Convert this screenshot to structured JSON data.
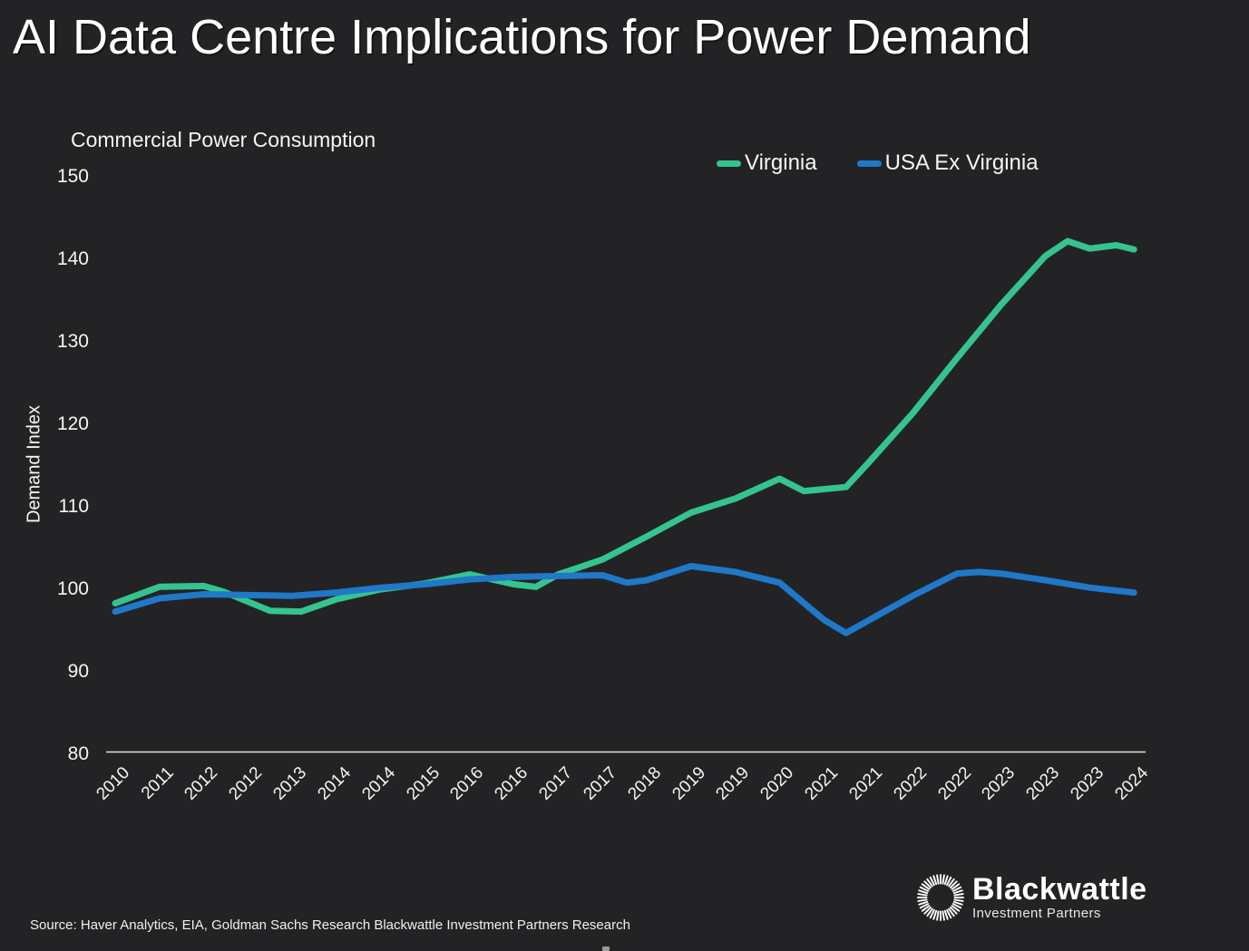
{
  "header": {
    "title": "AI Data Centre Implications for Power Demand"
  },
  "chart": {
    "subtitle": "Commercial Power Consumption",
    "y_axis_title": "Demand Index",
    "legend": [
      {
        "label": "Virginia",
        "color": "#35c48e"
      },
      {
        "label": "USA Ex Virginia",
        "color": "#1f78c8"
      }
    ]
  },
  "chart_data": {
    "type": "line",
    "title": "Commercial Power Consumption",
    "xlabel": "",
    "ylabel": "Demand Index",
    "ylim": [
      80,
      150
    ],
    "y_ticks": [
      150,
      140,
      130,
      120,
      110,
      100,
      90,
      80
    ],
    "x_tick_labels": [
      "2010",
      "2011",
      "2012",
      "2012",
      "2013",
      "2014",
      "2014",
      "2015",
      "2016",
      "2016",
      "2017",
      "2017",
      "2018",
      "2019",
      "2019",
      "2020",
      "2021",
      "2021",
      "2022",
      "2022",
      "2023",
      "2023",
      "2023",
      "2024"
    ],
    "grid": false,
    "legend_position": "top-right",
    "series": [
      {
        "name": "Virginia",
        "color": "#35c48e",
        "points": [
          [
            0,
            98.3
          ],
          [
            1,
            100.3
          ],
          [
            2,
            100.4
          ],
          [
            2.45,
            99.7
          ],
          [
            3.5,
            97.4
          ],
          [
            4.2,
            97.3
          ],
          [
            5,
            98.8
          ],
          [
            6,
            100.0
          ],
          [
            7,
            100.7
          ],
          [
            8,
            101.8
          ],
          [
            9,
            100.6
          ],
          [
            9.5,
            100.3
          ],
          [
            10,
            101.8
          ],
          [
            11,
            103.6
          ],
          [
            12,
            106.4
          ],
          [
            13,
            109.3
          ],
          [
            14,
            111.0
          ],
          [
            15,
            113.4
          ],
          [
            15.55,
            111.9
          ],
          [
            16.5,
            112.4
          ],
          [
            17,
            115.3
          ],
          [
            18,
            121.3
          ],
          [
            19,
            128.0
          ],
          [
            20,
            134.5
          ],
          [
            21,
            140.4
          ],
          [
            21.5,
            142.2
          ],
          [
            22,
            141.3
          ],
          [
            22.6,
            141.7
          ],
          [
            23,
            141.2
          ]
        ]
      },
      {
        "name": "USA Ex Virginia",
        "color": "#1f78c8",
        "points": [
          [
            0,
            97.3
          ],
          [
            1,
            98.9
          ],
          [
            2,
            99.4
          ],
          [
            3,
            99.3
          ],
          [
            4,
            99.2
          ],
          [
            5,
            99.6
          ],
          [
            6,
            100.2
          ],
          [
            7,
            100.6
          ],
          [
            8,
            101.2
          ],
          [
            9,
            101.5
          ],
          [
            10,
            101.6
          ],
          [
            11,
            101.7
          ],
          [
            11.55,
            100.8
          ],
          [
            12,
            101.1
          ],
          [
            13,
            102.8
          ],
          [
            14,
            102.1
          ],
          [
            15,
            100.8
          ],
          [
            16,
            96.3
          ],
          [
            16.5,
            94.7
          ],
          [
            17,
            96.2
          ],
          [
            18,
            99.2
          ],
          [
            19,
            101.9
          ],
          [
            19.5,
            102.1
          ],
          [
            20,
            101.9
          ],
          [
            21,
            101.1
          ],
          [
            22,
            100.2
          ],
          [
            23,
            99.6
          ]
        ]
      }
    ]
  },
  "footer": {
    "source": "Source: Haver Analytics, EIA, Goldman Sachs Research Blackwattle Investment Partners Research",
    "logo": {
      "brand": "Blackwattle",
      "tagline": "Investment Partners"
    }
  }
}
